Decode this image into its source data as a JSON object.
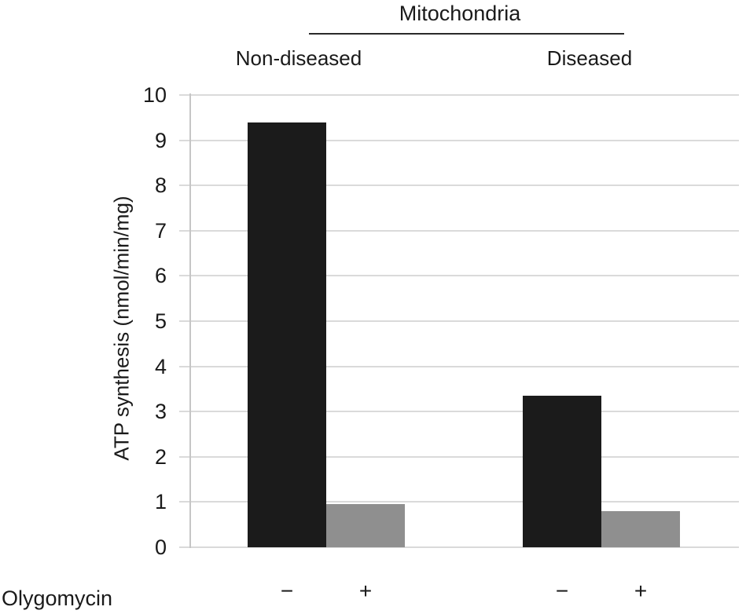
{
  "chart_data": {
    "type": "bar",
    "title": "Mitochondria",
    "ylabel": "ATP synthesis (nmol/min/mg)",
    "x_axis_label": "Olygomycin",
    "ylim": [
      0,
      10
    ],
    "yticks": [
      0,
      1,
      2,
      3,
      4,
      5,
      6,
      7,
      8,
      9,
      10
    ],
    "grid": "horizontal",
    "legend": "none",
    "colors": {
      "no_olygomycin_bar": "#1b1b1b",
      "with_olygomycin_bar": "#8f8f8f",
      "gridline": "#dadada",
      "axis_line": "#c6c6c6",
      "text": "#1a1a1a",
      "title_rule": "#2a2a2a"
    },
    "groups": [
      {
        "label": "Non-diseased",
        "bars": [
          {
            "olygomycin": "−",
            "value": 9.4,
            "color": "#1b1b1b",
            "striped": true
          },
          {
            "olygomycin": "+",
            "value": 0.95,
            "color": "#8f8f8f",
            "striped": false
          }
        ]
      },
      {
        "label": "Diseased",
        "bars": [
          {
            "olygomycin": "−",
            "value": 3.35,
            "color": "#1b1b1b",
            "striped": true
          },
          {
            "olygomycin": "+",
            "value": 0.8,
            "color": "#8f8f8f",
            "striped": false
          }
        ]
      }
    ]
  }
}
